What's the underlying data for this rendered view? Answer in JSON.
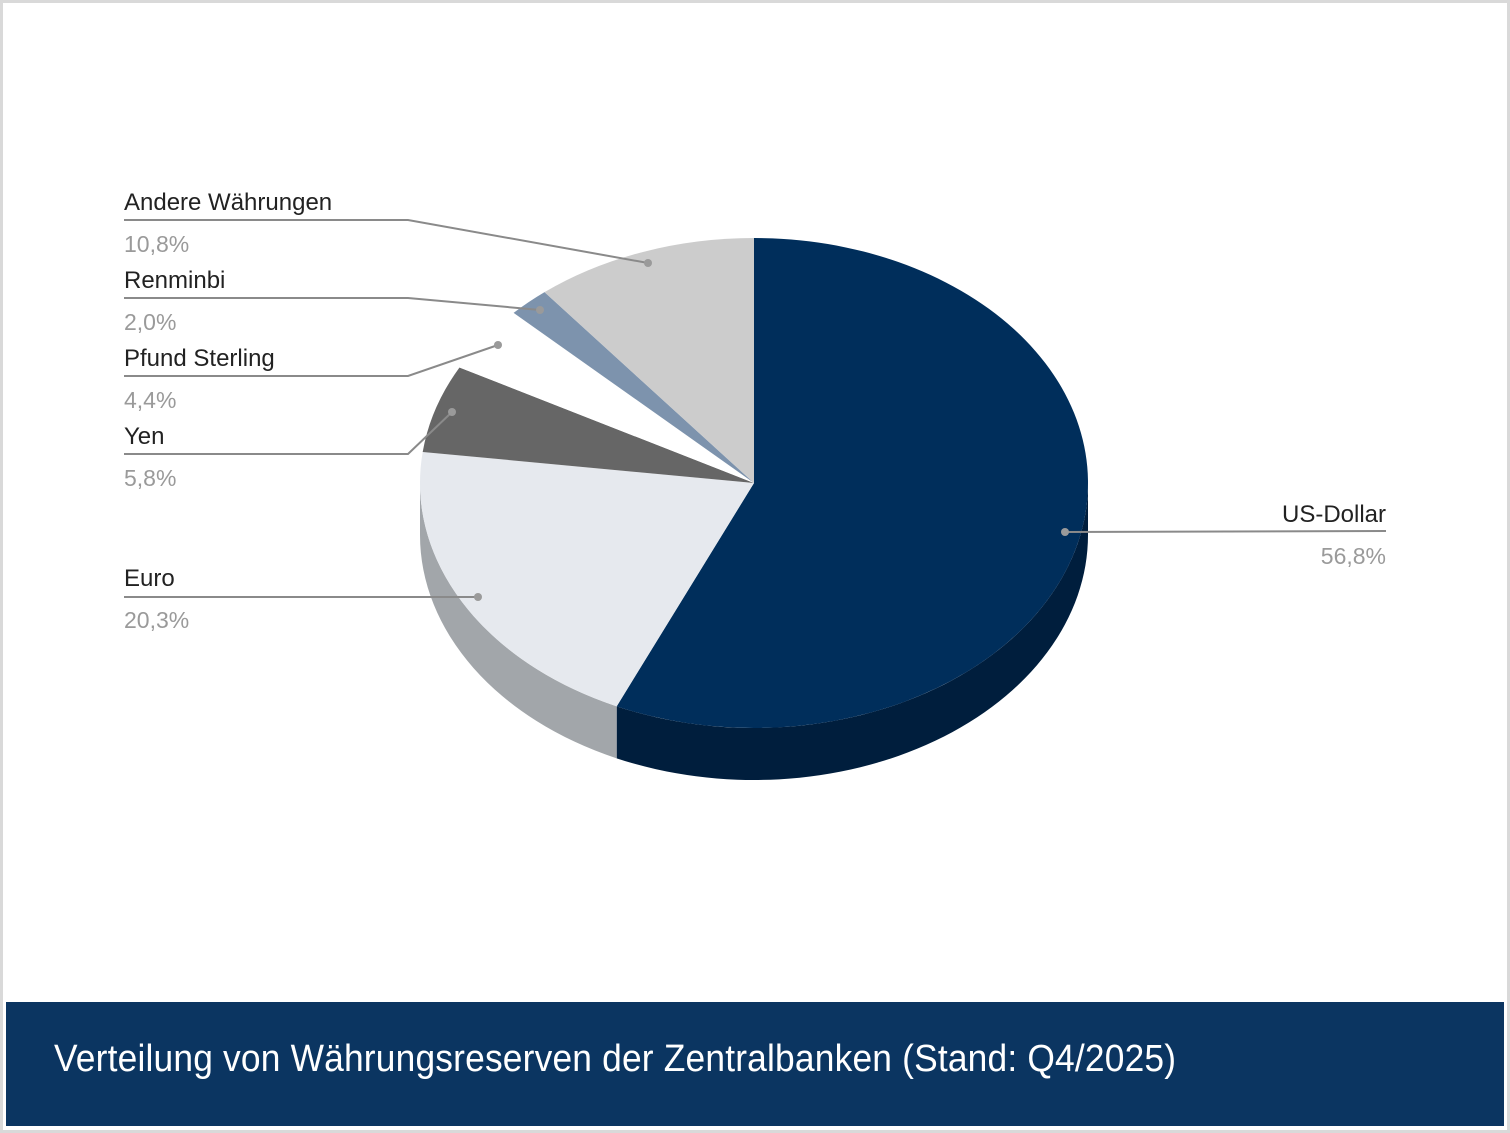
{
  "chart_data": {
    "type": "pie",
    "title": "Verteilung von Währungsreserven der Zentralbanken (Stand: Q4/2025)",
    "three_d": true,
    "slices": [
      {
        "label": "US-Dollar",
        "value": 56.8,
        "display": "56,8%",
        "color": "#002e5b",
        "side_color": "#001e3d"
      },
      {
        "label": "Euro",
        "value": 20.3,
        "display": "20,3%",
        "color": "#e6e9ee",
        "side_color": "#a2a6aa"
      },
      {
        "label": "Yen",
        "value": 5.8,
        "display": "5,8%",
        "color": "#666666",
        "side_color": "#4a4a4a"
      },
      {
        "label": "Pfund Sterling",
        "value": 4.4,
        "display": "4,4%",
        "color": "#ffffff",
        "side_color": "#ffffff"
      },
      {
        "label": "Renminbi",
        "value": 2.0,
        "display": "2,0%",
        "color": "#7d93ad",
        "side_color": "#5e7189"
      },
      {
        "label": "Andere Währungen",
        "value": 10.8,
        "display": "10,8%",
        "color": "#cccccc",
        "side_color": "#a0a0a0"
      }
    ]
  }
}
